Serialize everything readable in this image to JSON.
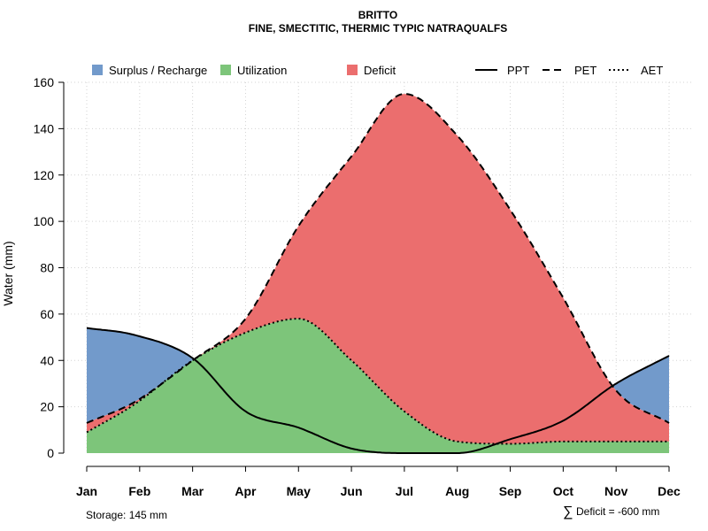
{
  "colors": {
    "surplus": "#729ACB",
    "utilization": "#7DC57A",
    "deficit": "#EB6E6E",
    "grid": "#d3d3d3",
    "line": "#000000"
  },
  "chart_data": {
    "type": "area",
    "title": "BRITTO",
    "subtitle": "FINE, SMECTITIC, THERMIC TYPIC NATRAQUALFS",
    "ylabel": "Water (mm)",
    "xlabel": "",
    "ylim": [
      0,
      160
    ],
    "yticks": [
      0,
      20,
      40,
      60,
      80,
      100,
      120,
      140,
      160
    ],
    "grid": true,
    "categories": [
      "Jan",
      "Feb",
      "Mar",
      "Apr",
      "May",
      "Jun",
      "Jul",
      "Aug",
      "Sep",
      "Oct",
      "Nov",
      "Dec"
    ],
    "x": [
      1,
      1.9,
      3,
      4,
      5,
      6,
      7,
      8,
      9,
      10,
      11,
      12
    ],
    "series": [
      {
        "name": "PPT",
        "style": "solid",
        "values": [
          54,
          51,
          41,
          18,
          11,
          2,
          0,
          0,
          6,
          14,
          30,
          42
        ]
      },
      {
        "name": "PET",
        "style": "dashed",
        "values": [
          13,
          22,
          40,
          58,
          98,
          128,
          155,
          137,
          105,
          67,
          27,
          13
        ]
      },
      {
        "name": "AET",
        "style": "dotted",
        "values": [
          9,
          21,
          40,
          52,
          58,
          40,
          18,
          5,
          4,
          5,
          5,
          5
        ]
      }
    ],
    "legend": [
      {
        "label": "Surplus / Recharge",
        "kind": "fill",
        "key": "surplus"
      },
      {
        "label": "Utilization",
        "kind": "fill",
        "key": "utilization"
      },
      {
        "label": "Deficit",
        "kind": "fill",
        "key": "deficit"
      },
      {
        "label": "PPT",
        "kind": "line",
        "style": "solid"
      },
      {
        "label": "PET",
        "kind": "line",
        "style": "dashed"
      },
      {
        "label": "AET",
        "kind": "line",
        "style": "dotted"
      }
    ],
    "legend_position": "top",
    "annotations": {
      "storage": "Storage: 145 mm",
      "deficit_symbol": "∑",
      "deficit": "Deficit = -600 mm"
    }
  }
}
